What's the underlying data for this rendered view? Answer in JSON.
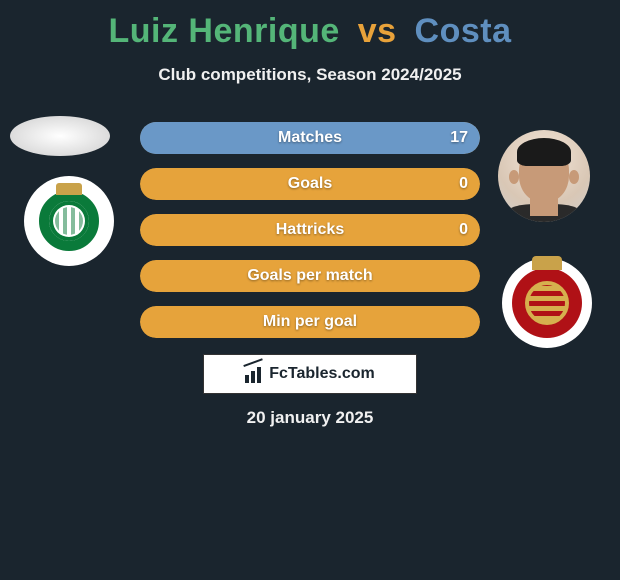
{
  "title": {
    "player1": "Luiz Henrique",
    "vs": "vs",
    "player2": "Costa",
    "player1_color": "#54b578",
    "vs_color": "#e8a23a",
    "player2_color": "#5f8fbf"
  },
  "subtitle": "Club competitions, Season 2024/2025",
  "colors": {
    "left_fill": "#5db37b",
    "right_fill": "#6a98c7",
    "default_fill": "#e6a33b",
    "background": "#1a252e",
    "text": "#ffffff"
  },
  "rows": [
    {
      "label": "Matches",
      "left_value": "",
      "right_value": "17",
      "split_pct": null,
      "right_only_pct": 100
    },
    {
      "label": "Goals",
      "left_value": "",
      "right_value": "0",
      "split_pct": null,
      "right_only_pct": null
    },
    {
      "label": "Hattricks",
      "left_value": "",
      "right_value": "0",
      "split_pct": null,
      "right_only_pct": null
    },
    {
      "label": "Goals per match",
      "left_value": "",
      "right_value": "",
      "split_pct": null,
      "right_only_pct": null
    },
    {
      "label": "Min per goal",
      "left_value": "",
      "right_value": "",
      "split_pct": null,
      "right_only_pct": null
    }
  ],
  "brand": "FcTables.com",
  "footer_date": "20 january 2025"
}
